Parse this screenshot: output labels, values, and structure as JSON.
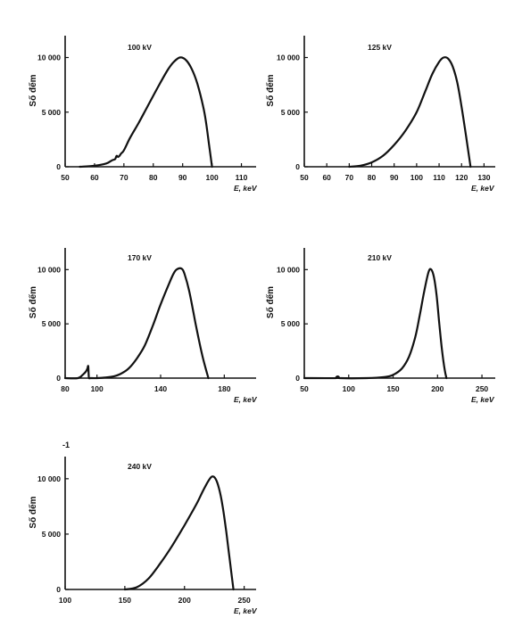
{
  "stray_mark": "-1",
  "chart_data": [
    {
      "type": "line",
      "title": "100 kV",
      "ylabel": "Số đếm",
      "xlabel": "E, keV",
      "xlim": [
        50,
        115
      ],
      "ylim": [
        0,
        12000
      ],
      "xticks": [
        50,
        60,
        70,
        80,
        90,
        100,
        110
      ],
      "yticks": [
        0,
        5000,
        10000
      ],
      "ytick_labels": [
        "0",
        "5 000",
        "10 000"
      ],
      "series": [
        {
          "x": [
            55,
            60,
            64,
            66,
            67,
            67.5,
            68,
            68.5,
            69,
            70,
            72,
            75,
            78,
            82,
            85,
            87,
            89,
            91,
            93,
            95,
            97,
            98,
            99,
            100
          ],
          "y": [
            0,
            100,
            300,
            600,
            700,
            1000,
            900,
            1000,
            1200,
            1500,
            2600,
            4000,
            5500,
            7500,
            8900,
            9600,
            10000,
            9800,
            9000,
            7600,
            5500,
            4000,
            2000,
            0
          ]
        }
      ]
    },
    {
      "type": "line",
      "title": "125 kV",
      "ylabel": "Số đếm",
      "xlabel": "E, keV",
      "xlim": [
        50,
        135
      ],
      "ylim": [
        0,
        12000
      ],
      "xticks": [
        50,
        60,
        70,
        80,
        90,
        100,
        110,
        120,
        130
      ],
      "yticks": [
        0,
        5000,
        10000
      ],
      "ytick_labels": [
        "0",
        "5 000",
        "10 000"
      ],
      "series": [
        {
          "x": [
            70,
            75,
            80,
            85,
            90,
            95,
            100,
            104,
            107,
            110,
            112,
            114,
            116,
            118,
            120,
            122,
            124
          ],
          "y": [
            0,
            100,
            400,
            1000,
            2000,
            3300,
            5000,
            7000,
            8500,
            9600,
            10000,
            9900,
            9200,
            7800,
            5500,
            2800,
            0
          ]
        }
      ]
    },
    {
      "type": "line",
      "title": "170 kV",
      "ylabel": "Số đếm",
      "xlabel": "E, keV",
      "xlim": [
        80,
        200
      ],
      "ylim": [
        0,
        12000
      ],
      "xticks": [
        80,
        100,
        140,
        180
      ],
      "yticks": [
        0,
        5000,
        10000
      ],
      "ytick_labels": [
        "0",
        "5 000",
        "10 000"
      ],
      "series": [
        {
          "x": [
            80,
            88,
            91,
            93,
            94,
            94.5,
            94.8,
            95,
            96,
            100,
            105,
            110,
            115,
            120,
            125,
            130,
            135,
            140,
            145,
            148,
            150,
            153,
            155,
            158,
            162,
            166,
            170
          ],
          "y": [
            0,
            0,
            300,
            600,
            900,
            1100,
            300,
            0,
            0,
            0,
            50,
            150,
            400,
            900,
            1800,
            3000,
            4800,
            6800,
            8600,
            9600,
            10000,
            10100,
            9600,
            8000,
            5000,
            2200,
            0
          ]
        }
      ]
    },
    {
      "type": "line",
      "title": "210 kV",
      "ylabel": "Số đếm",
      "xlabel": "E, keV",
      "xlim": [
        50,
        265
      ],
      "ylim": [
        0,
        12000
      ],
      "xticks": [
        50,
        100,
        150,
        200,
        250
      ],
      "yticks": [
        0,
        5000,
        10000
      ],
      "ytick_labels": [
        "0",
        "5 000",
        "10 000"
      ],
      "series": [
        {
          "x": [
            50,
            85,
            86,
            87,
            88,
            89,
            90,
            120,
            140,
            150,
            160,
            168,
            175,
            180,
            185,
            190,
            193,
            196,
            199,
            202,
            205,
            208,
            210
          ],
          "y": [
            0,
            0,
            80,
            150,
            150,
            80,
            0,
            0,
            100,
            300,
            900,
            2000,
            3800,
            5800,
            8000,
            9800,
            10000,
            9300,
            7600,
            5000,
            2600,
            800,
            0
          ]
        }
      ]
    },
    {
      "type": "line",
      "title": "240 kV",
      "ylabel": "Số đếm",
      "xlabel": "E, keV",
      "xlim": [
        100,
        260
      ],
      "ylim": [
        0,
        12000
      ],
      "xticks": [
        100,
        150,
        200,
        250
      ],
      "yticks": [
        0,
        5000,
        10000
      ],
      "ytick_labels": [
        "0",
        "5 000",
        "10 000"
      ],
      "series": [
        {
          "x": [
            150,
            160,
            170,
            180,
            190,
            200,
            210,
            215,
            220,
            223,
            226,
            229,
            232,
            235,
            238,
            241
          ],
          "y": [
            0,
            200,
            1000,
            2400,
            4000,
            5800,
            7700,
            8800,
            9800,
            10200,
            10000,
            9100,
            7500,
            5200,
            2600,
            0
          ]
        }
      ]
    }
  ]
}
